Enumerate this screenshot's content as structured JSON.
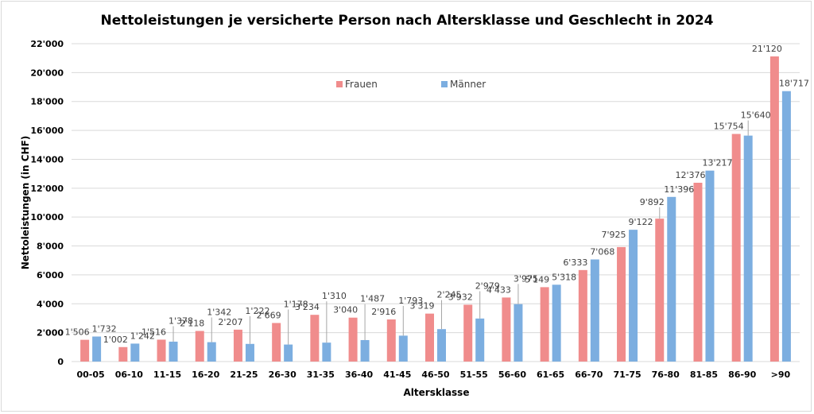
{
  "chart_data": {
    "type": "bar",
    "title": "Nettoleistungen je versicherte Person nach Altersklasse und Geschlecht in 2024",
    "xlabel": "Altersklasse",
    "ylabel": "Nettoleistungen (in CHF)",
    "ylim": [
      0,
      22000
    ],
    "ytick_step": 2000,
    "yticks": [
      "0",
      "2'000",
      "4'000",
      "6'000",
      "8'000",
      "10'000",
      "12'000",
      "14'000",
      "16'000",
      "18'000",
      "20'000",
      "22'000"
    ],
    "grid": true,
    "legend_position": "top-center",
    "categories": [
      "00-05",
      "06-10",
      "11-15",
      "16-20",
      "21-25",
      "26-30",
      "31-35",
      "36-40",
      "41-45",
      "46-50",
      "51-55",
      "56-60",
      "61-65",
      "66-70",
      "71-75",
      "76-80",
      "81-85",
      "86-90",
      ">90"
    ],
    "series": [
      {
        "name": "Frauen",
        "color": "#f08c8c",
        "values": [
          1506,
          1002,
          1516,
          2118,
          2207,
          2669,
          3234,
          3040,
          2916,
          3319,
          3932,
          4433,
          5149,
          6333,
          7925,
          9892,
          12376,
          15754,
          21120
        ],
        "labels": [
          "1'506",
          "1'002",
          "1'516",
          "2'118",
          "2'207",
          "2'669",
          "3'234",
          "3'040",
          "2'916",
          "3'319",
          "3'932",
          "4'433",
          "5'149",
          "6'333",
          "7'925",
          "9'892",
          "12'376",
          "15'754",
          "21'120"
        ]
      },
      {
        "name": "Männer",
        "color": "#7caee0",
        "values": [
          1732,
          1242,
          1378,
          1342,
          1222,
          1178,
          1310,
          1487,
          1793,
          2245,
          2979,
          3975,
          5318,
          7068,
          9122,
          11396,
          13217,
          15640,
          18717
        ],
        "labels": [
          "1'732",
          "1'242",
          "1'378",
          "1'342",
          "1'222",
          "1'178",
          "1'310",
          "1'487",
          "1'793",
          "2'245",
          "2'979",
          "3'975",
          "5'318",
          "7'068",
          "9'122",
          "11'396",
          "13'217",
          "15'640",
          "18'717"
        ]
      }
    ]
  }
}
